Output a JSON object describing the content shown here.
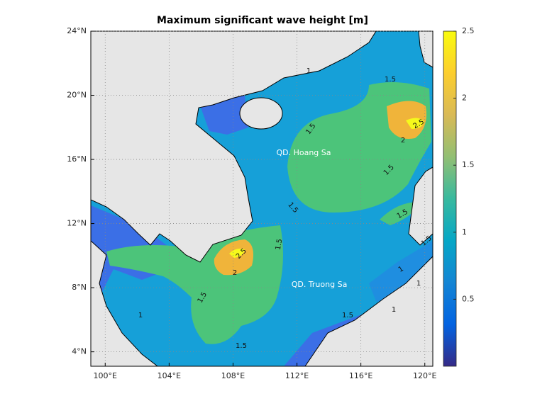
{
  "title": "Maximum significant wave height [m]",
  "map": {
    "xlim": [
      99.1,
      120.5
    ],
    "ylim": [
      3.1,
      24
    ],
    "xticks": [
      {
        "value": 100,
        "label": "100°E"
      },
      {
        "value": 104,
        "label": "104°E"
      },
      {
        "value": 108,
        "label": "108°E"
      },
      {
        "value": 112,
        "label": "112°E"
      },
      {
        "value": 116,
        "label": "116°E"
      },
      {
        "value": 120,
        "label": "120°E"
      }
    ],
    "yticks": [
      {
        "value": 4,
        "label": "4°N"
      },
      {
        "value": 8,
        "label": "8°N"
      },
      {
        "value": 12,
        "label": "12°N"
      },
      {
        "value": 16,
        "label": "16°N"
      },
      {
        "value": 20,
        "label": "20°N"
      },
      {
        "value": 24,
        "label": "24°N"
      }
    ],
    "grid": true,
    "place_names": [
      "QD. Hoang Sa",
      "QD. Truong Sa"
    ],
    "contour_labels": [
      1.5,
      1.5,
      2.5,
      2,
      1.5,
      1.5,
      1.5,
      1.5,
      2.5,
      2,
      1.5,
      1.5,
      1,
      1,
      1,
      1,
      1.5,
      1.5,
      1
    ]
  },
  "colorbar": {
    "clim": [
      0,
      2.5
    ],
    "ticks": [
      0.5,
      1,
      1.5,
      2,
      2.5
    ]
  }
}
